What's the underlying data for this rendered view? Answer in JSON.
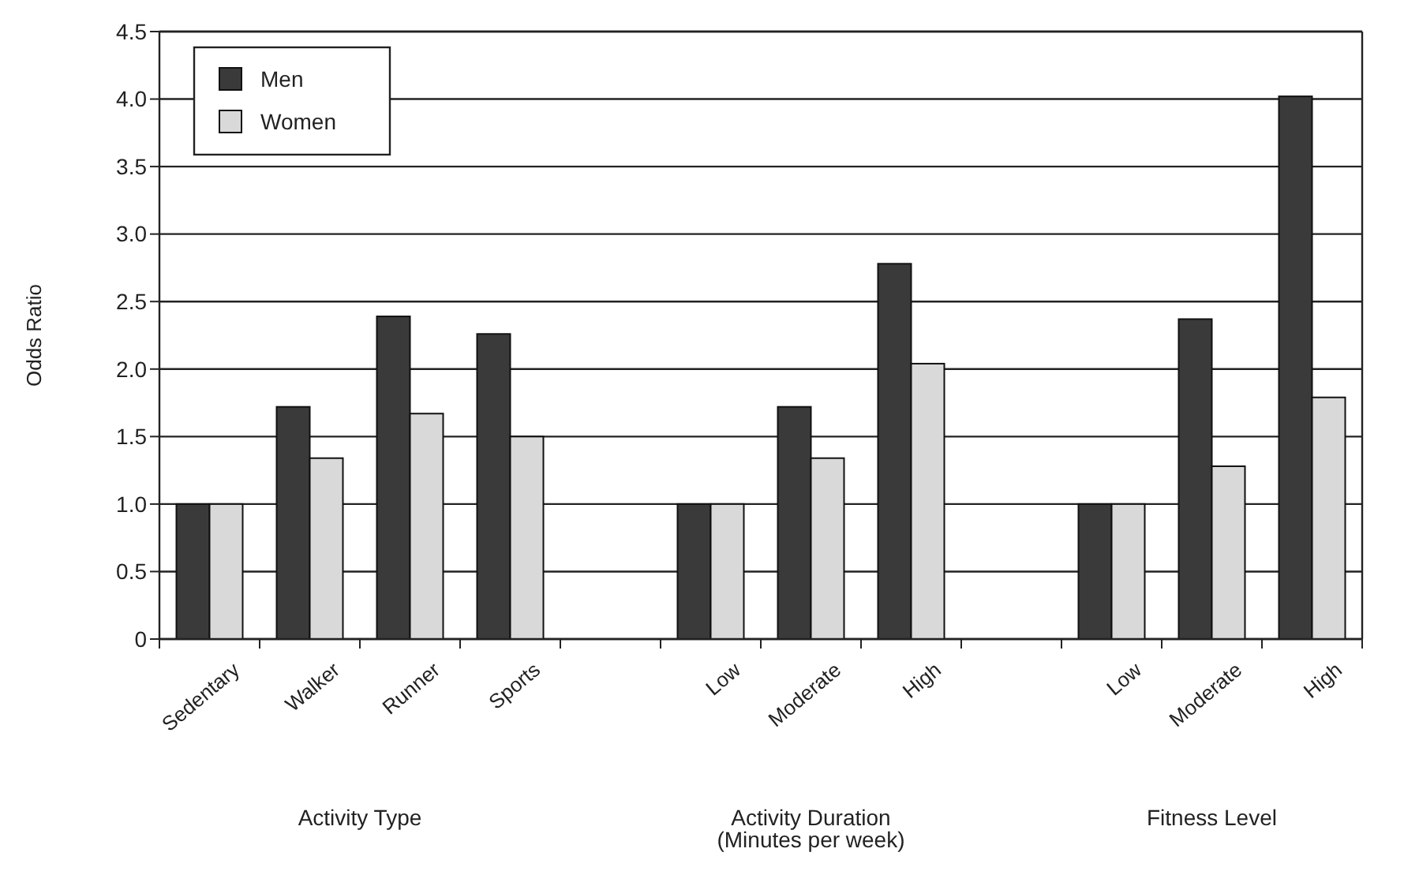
{
  "chart_data": {
    "type": "bar",
    "ylabel": "Odds Ratio",
    "categories": [
      "Sedentary",
      "Walker",
      "Runner",
      "Sports",
      null,
      "Low",
      "Moderate",
      "High",
      null,
      "Low",
      "Moderate",
      "High"
    ],
    "series": [
      {
        "name": "Men",
        "color": "#3a3a3a",
        "values": [
          1.0,
          1.72,
          2.39,
          2.26,
          null,
          1.0,
          1.72,
          2.78,
          null,
          1.0,
          2.37,
          4.02
        ]
      },
      {
        "name": "Women",
        "color": "#d9d9d9",
        "values": [
          1.0,
          1.34,
          1.67,
          1.5,
          null,
          1.0,
          1.34,
          2.04,
          null,
          1.0,
          1.28,
          1.79
        ]
      }
    ],
    "ylim": [
      0,
      4.5
    ],
    "yticks": [
      {
        "value": 0,
        "label": "0"
      },
      {
        "value": 0.5,
        "label": "0.5"
      },
      {
        "value": 1,
        "label": "1.0"
      },
      {
        "value": 1.5,
        "label": "1.5"
      },
      {
        "value": 2,
        "label": "2.0"
      },
      {
        "value": 2.5,
        "label": "2.5"
      },
      {
        "value": 3,
        "label": "3.0"
      },
      {
        "value": 3.5,
        "label": "3.5"
      },
      {
        "value": 4,
        "label": "4.0"
      },
      {
        "value": 4.5,
        "label": "4.5"
      }
    ],
    "grid": "y",
    "legend": "top left",
    "annotations": [
      "Activity Type",
      "Activity Duration\n(Minutes per week)",
      "Fitness Level"
    ]
  }
}
